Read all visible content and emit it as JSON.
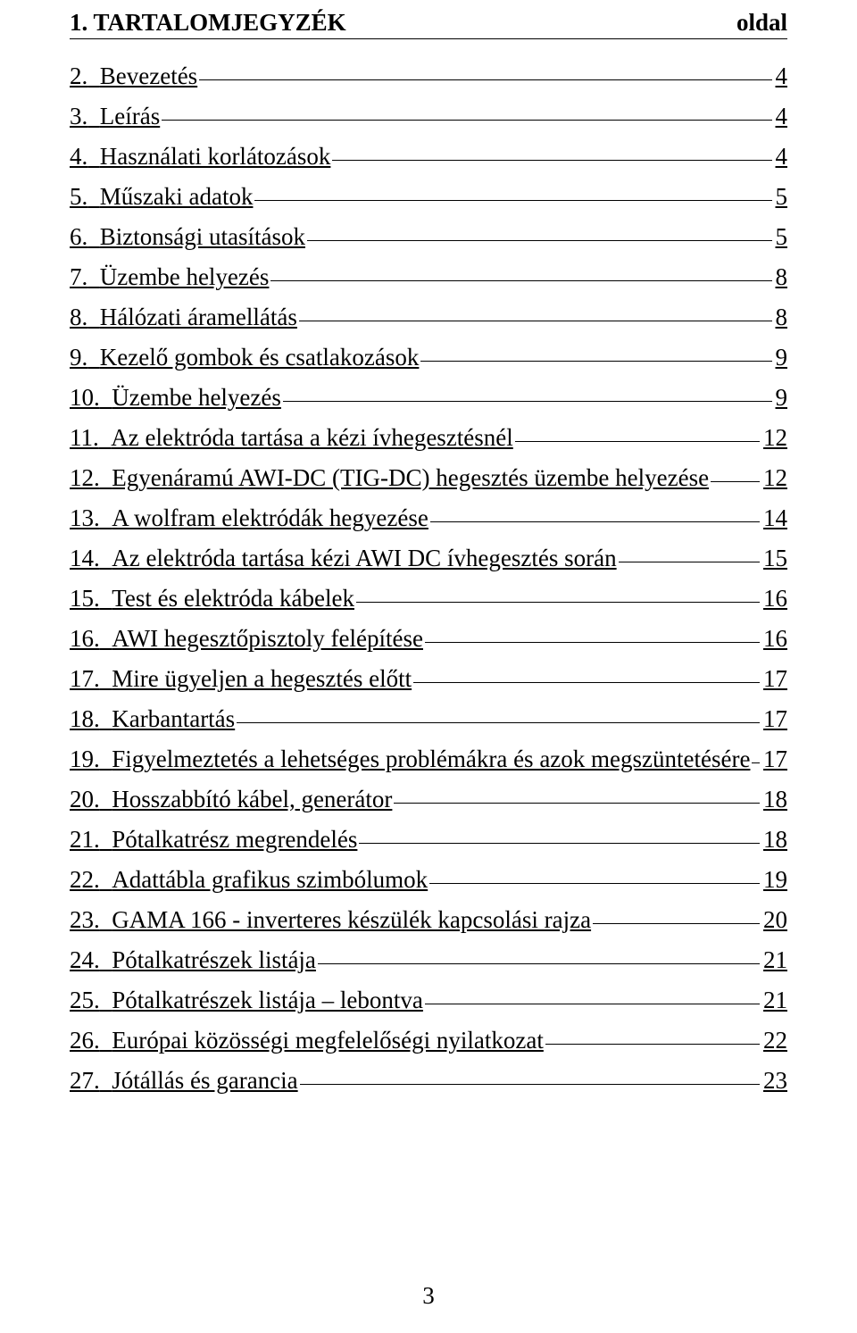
{
  "heading": {
    "left": "1. TARTALOMJEGYZÉK",
    "right": "oldal"
  },
  "items": [
    {
      "num": "2.",
      "title": "Bevezetés",
      "page": "4"
    },
    {
      "num": "3.",
      "title": "Leírás",
      "page": "4"
    },
    {
      "num": "4.",
      "title": "Használati korlátozások",
      "page": "4"
    },
    {
      "num": "5.",
      "title": "Műszaki adatok",
      "page": "5"
    },
    {
      "num": "6.",
      "title": "Biztonsági utasítások",
      "page": "5"
    },
    {
      "num": "7.",
      "title": "Üzembe helyezés",
      "page": "8"
    },
    {
      "num": "8.",
      "title": "Hálózati áramellátás",
      "page": "8"
    },
    {
      "num": "9.",
      "title": "Kezelő gombok és csatlakozások",
      "page": "9"
    },
    {
      "num": "10.",
      "title": "Üzembe helyezés",
      "page": "9"
    },
    {
      "num": "11.",
      "title": "Az elektróda tartása a kézi ívhegesztésnél",
      "page": "12"
    },
    {
      "num": "12.",
      "title": "Egyenáramú AWI-DC (TIG-DC) hegesztés üzembe helyezése",
      "page": "12"
    },
    {
      "num": "13.",
      "title": "A wolfram elektródák hegyezése",
      "page": "14"
    },
    {
      "num": "14.",
      "title": "Az elektróda tartása kézi AWI DC ívhegesztés során",
      "page": "15"
    },
    {
      "num": "15.",
      "title": "Test és elektróda kábelek",
      "page": "16"
    },
    {
      "num": "16.",
      "title": "AWI hegesztőpisztoly felépítése",
      "page": "16"
    },
    {
      "num": "17.",
      "title": "Mire ügyeljen a hegesztés előtt",
      "page": "17"
    },
    {
      "num": "18.",
      "title": "Karbantartás",
      "page": "17"
    },
    {
      "num": "19.",
      "title": "Figyelmeztetés a lehetséges problémákra és azok megszüntetésére",
      "page": "17"
    },
    {
      "num": "20.",
      "title": "Hosszabbító kábel, generátor",
      "page": "18"
    },
    {
      "num": "21.",
      "title": "Pótalkatrész megrendelés",
      "page": "18"
    },
    {
      "num": "22.",
      "title": "Adattábla grafikus szimbólumok",
      "page": "19"
    },
    {
      "num": "23.",
      "title": "GAMA 166 - inverteres készülék kapcsolási rajza",
      "page": "20"
    },
    {
      "num": "24.",
      "title": "Pótalkatrészek listája",
      "page": "21"
    },
    {
      "num": "25.",
      "title": "Pótalkatrészek listája – lebontva",
      "page": "21"
    },
    {
      "num": "26.",
      "title": "Európai közösségi megfelelőségi nyilatkozat",
      "page": "22"
    },
    {
      "num": "27.",
      "title": "Jótállás és garancia",
      "page": "23"
    }
  ],
  "pageNumber": "3"
}
